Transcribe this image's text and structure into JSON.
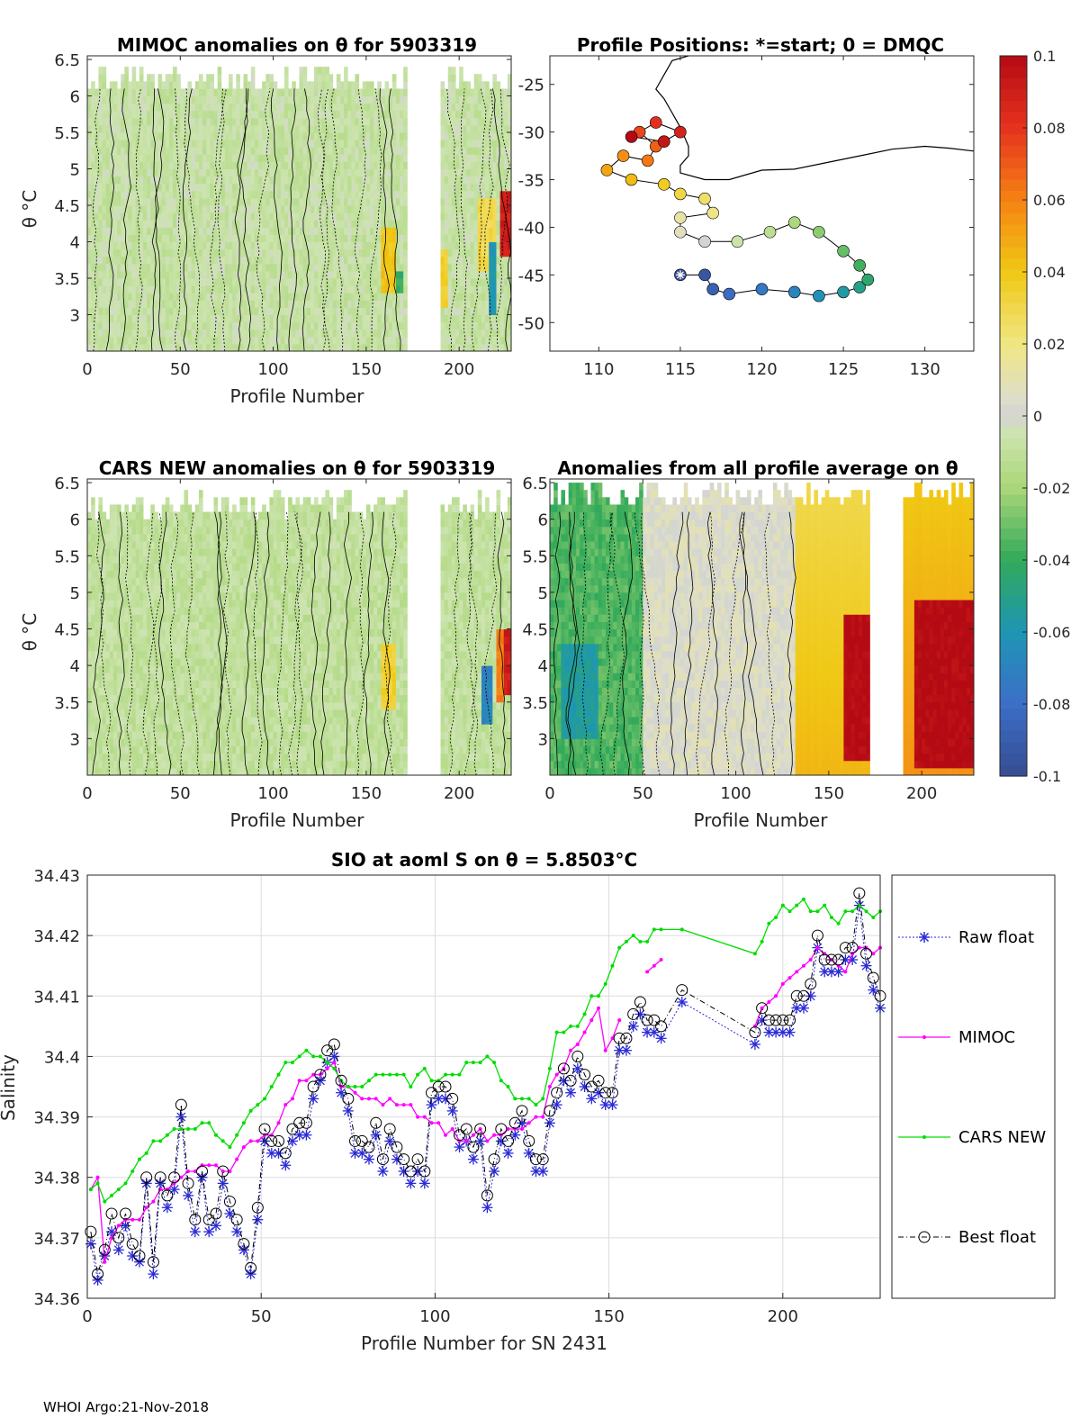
{
  "figure": {
    "footer": "WHOI Argo:21-Nov-2018"
  },
  "chart_data": [
    {
      "id": "mimoc",
      "type": "heatmap",
      "title": "MIMOC anomalies on θ  for 5903319",
      "xlabel": "Profile Number",
      "ylabel": "θ °C",
      "xlim": [
        0,
        228
      ],
      "ylim": [
        2.5,
        6.55
      ],
      "xticks": [
        0,
        50,
        100,
        150,
        200
      ],
      "yticks": [
        3,
        3.5,
        4,
        4.5,
        5,
        5.5,
        6,
        6.5
      ],
      "xtick_labels": [
        "0",
        "50",
        "100",
        "150",
        "200"
      ],
      "ytick_labels": [
        "3",
        "3.5",
        "4",
        "4.5",
        "5",
        "5.5",
        "6",
        "6.5"
      ],
      "gaps": [
        [
          172,
          190
        ]
      ],
      "top_range": [
        6.0,
        6.35
      ],
      "base_anomaly": -0.008,
      "hotspots": [
        {
          "x0": 157,
          "x1": 165,
          "y0": 3.3,
          "y1": 4.2,
          "v": 0.04
        },
        {
          "x0": 166,
          "x1": 170,
          "y0": 3.3,
          "y1": 3.6,
          "v": -0.04
        },
        {
          "x0": 190,
          "x1": 194,
          "y0": 3.1,
          "y1": 3.9,
          "v": 0.035
        },
        {
          "x0": 210,
          "x1": 220,
          "y0": 3.6,
          "y1": 4.5,
          "v": 0.03
        },
        {
          "x0": 216,
          "x1": 219,
          "y0": 3.0,
          "y1": 4.0,
          "v": -0.06
        },
        {
          "x0": 222,
          "x1": 227,
          "y0": 3.8,
          "y1": 4.6,
          "v": 0.09
        }
      ]
    },
    {
      "id": "positions",
      "type": "scatter",
      "title": "Profile Positions: *=start; 0 = DMQC",
      "xlim": [
        107,
        133
      ],
      "ylim": [
        -53,
        -22
      ],
      "xticks": [
        110,
        115,
        120,
        125,
        130
      ],
      "yticks": [
        -50,
        -45,
        -40,
        -35,
        -30,
        -25
      ],
      "xtick_labels": [
        "110",
        "115",
        "120",
        "125",
        "130"
      ],
      "ytick_labels": [
        "-50",
        "-45",
        "-40",
        "-35",
        "-30",
        "-25"
      ],
      "start": [
        115,
        -45
      ],
      "track": [
        [
          115.0,
          -45.0
        ],
        [
          116.5,
          -45.0
        ],
        [
          117.0,
          -46.5
        ],
        [
          118.0,
          -47.0
        ],
        [
          120.0,
          -46.5
        ],
        [
          122.0,
          -46.8
        ],
        [
          123.5,
          -47.2
        ],
        [
          125.0,
          -46.8
        ],
        [
          126.0,
          -46.3
        ],
        [
          126.5,
          -45.5
        ],
        [
          126.0,
          -44.0
        ],
        [
          125.0,
          -42.5
        ],
        [
          123.5,
          -40.5
        ],
        [
          122.0,
          -39.5
        ],
        [
          120.5,
          -40.5
        ],
        [
          118.5,
          -41.5
        ],
        [
          116.5,
          -41.5
        ],
        [
          115.0,
          -40.5
        ],
        [
          115.0,
          -39.0
        ],
        [
          117.0,
          -38.5
        ],
        [
          116.5,
          -37.0
        ],
        [
          115.0,
          -36.5
        ],
        [
          114.0,
          -35.5
        ],
        [
          112.0,
          -35.0
        ],
        [
          110.5,
          -34.0
        ],
        [
          111.5,
          -32.5
        ],
        [
          113.0,
          -33.0
        ],
        [
          113.5,
          -31.5
        ],
        [
          112.5,
          -30.0
        ],
        [
          113.5,
          -29.0
        ],
        [
          115.0,
          -30.0
        ],
        [
          114.0,
          -31.0
        ],
        [
          112.0,
          -30.5
        ]
      ],
      "coast": [
        [
          [
            115.5,
            -22.0
          ],
          [
            114.5,
            -22.5
          ],
          [
            114.0,
            -24.0
          ],
          [
            113.5,
            -25.5
          ],
          [
            114.0,
            -26.5
          ],
          [
            114.5,
            -28.0
          ],
          [
            115.0,
            -29.5
          ],
          [
            115.5,
            -31.5
          ],
          [
            115.5,
            -32.5
          ],
          [
            115.0,
            -33.5
          ],
          [
            115.0,
            -34.3
          ],
          [
            116.5,
            -35.0
          ],
          [
            118.0,
            -35.0
          ],
          [
            120.0,
            -34.0
          ],
          [
            122.0,
            -33.9
          ],
          [
            124.0,
            -33.2
          ],
          [
            126.0,
            -32.5
          ],
          [
            128.0,
            -31.8
          ],
          [
            130.0,
            -31.5
          ],
          [
            131.5,
            -31.7
          ],
          [
            133.0,
            -32.0
          ]
        ]
      ]
    },
    {
      "id": "cars",
      "type": "heatmap",
      "title": "CARS NEW anomalies on θ for 5903319",
      "xlabel": "Profile Number",
      "ylabel": "θ °C",
      "xlim": [
        0,
        228
      ],
      "ylim": [
        2.5,
        6.55
      ],
      "xticks": [
        0,
        50,
        100,
        150,
        200
      ],
      "yticks": [
        3,
        3.5,
        4,
        4.5,
        5,
        5.5,
        6,
        6.5
      ],
      "xtick_labels": [
        "0",
        "50",
        "100",
        "150",
        "200"
      ],
      "ytick_labels": [
        "3",
        "3.5",
        "4",
        "4.5",
        "5",
        "5.5",
        "6",
        "6.5"
      ],
      "gaps": [
        [
          172,
          190
        ]
      ],
      "top_range": [
        5.95,
        6.35
      ],
      "base_anomaly": -0.01,
      "hotspots": [
        {
          "x0": 158,
          "x1": 166,
          "y0": 3.4,
          "y1": 4.3,
          "v": 0.035
        },
        {
          "x0": 212,
          "x1": 218,
          "y0": 3.2,
          "y1": 4.0,
          "v": -0.07
        },
        {
          "x0": 219,
          "x1": 224,
          "y0": 3.5,
          "y1": 4.4,
          "v": 0.06
        },
        {
          "x0": 224,
          "x1": 228,
          "y0": 3.6,
          "y1": 4.4,
          "v": 0.09
        }
      ]
    },
    {
      "id": "average",
      "type": "heatmap",
      "title": "Anomalies from all profile average on θ",
      "xlabel": "Profile Number",
      "xlim": [
        0,
        228
      ],
      "ylim": [
        2.5,
        6.55
      ],
      "xticks": [
        0,
        50,
        100,
        150,
        200
      ],
      "yticks": [
        3,
        3.5,
        4,
        4.5,
        5,
        5.5,
        6,
        6.5
      ],
      "xtick_labels": [
        "0",
        "50",
        "100",
        "150",
        "200"
      ],
      "ytick_labels": [
        "3",
        "3.5",
        "4",
        "4.5",
        "5",
        "5.5",
        "6",
        "6.5"
      ],
      "gaps": [
        [
          172,
          190
        ]
      ],
      "top_range": [
        6.1,
        6.5
      ],
      "regions": [
        {
          "x0": 0,
          "x1": 50,
          "v": -0.035
        },
        {
          "x0": 50,
          "x1": 132,
          "v": 0.004
        },
        {
          "x0": 132,
          "x1": 172,
          "v": 0.03
        },
        {
          "x0": 190,
          "x1": 228,
          "v": 0.04
        }
      ],
      "hotspots": [
        {
          "x0": 157,
          "x1": 172,
          "y0": 2.7,
          "y1": 4.6,
          "v": 0.1
        },
        {
          "x0": 196,
          "x1": 228,
          "y0": 2.6,
          "y1": 4.8,
          "v": 0.1
        },
        {
          "x0": 5,
          "x1": 25,
          "y0": 3.0,
          "y1": 4.3,
          "v": -0.055
        }
      ]
    },
    {
      "id": "colorbar",
      "type": "heatmap",
      "range": [
        -0.1,
        0.1
      ],
      "tick_values": [
        0.1,
        0.08,
        0.06,
        0.04,
        0.02,
        0,
        -0.02,
        -0.04,
        -0.06,
        -0.08,
        -0.1
      ],
      "tick_labels": [
        "0.1",
        "0.08",
        "0.06",
        "0.04",
        "0.02",
        "0",
        "-0.02",
        "-0.04",
        "-0.06",
        "-0.08",
        "-0.1"
      ]
    },
    {
      "id": "salinity",
      "type": "line",
      "title": "SIO at aoml S on θ = 5.8503°C",
      "xlabel": "Profile Number for SN 2431",
      "ylabel": "Salinity",
      "xlim": [
        0,
        228
      ],
      "ylim": [
        34.36,
        34.43
      ],
      "xticks": [
        0,
        50,
        100,
        150,
        200
      ],
      "yticks": [
        34.36,
        34.37,
        34.38,
        34.39,
        34.4,
        34.41,
        34.42,
        34.43
      ],
      "xtick_labels": [
        "0",
        "50",
        "100",
        "150",
        "200"
      ],
      "ytick_labels": [
        "34.36",
        "34.37",
        "34.38",
        "34.39",
        "34.4",
        "34.41",
        "34.42",
        "34.43"
      ],
      "legend": [
        "Raw float",
        "MIMOC",
        "CARS NEW",
        "Best float"
      ],
      "x": [
        1,
        3,
        5,
        7,
        9,
        11,
        13,
        15,
        17,
        19,
        21,
        23,
        25,
        27,
        29,
        31,
        33,
        35,
        37,
        39,
        41,
        43,
        45,
        47,
        49,
        51,
        53,
        55,
        57,
        59,
        61,
        63,
        65,
        67,
        69,
        71,
        73,
        75,
        77,
        79,
        81,
        83,
        85,
        87,
        89,
        91,
        93,
        95,
        97,
        99,
        101,
        103,
        105,
        107,
        109,
        111,
        113,
        115,
        117,
        119,
        121,
        123,
        125,
        127,
        129,
        131,
        133,
        135,
        137,
        139,
        141,
        143,
        145,
        147,
        149,
        151,
        153,
        155,
        157,
        159,
        161,
        163,
        165,
        171,
        192,
        194,
        196,
        198,
        200,
        202,
        204,
        206,
        208,
        210,
        212,
        214,
        216,
        218,
        220,
        222,
        224,
        226,
        228
      ],
      "series": [
        {
          "name": "Raw float",
          "values": [
            34.369,
            34.363,
            34.367,
            34.371,
            34.368,
            34.372,
            34.367,
            34.366,
            34.379,
            34.364,
            34.379,
            34.375,
            34.378,
            34.39,
            34.377,
            34.371,
            34.38,
            34.371,
            34.372,
            34.379,
            34.374,
            34.371,
            34.368,
            34.364,
            34.373,
            34.386,
            34.384,
            34.384,
            34.382,
            34.386,
            34.387,
            34.387,
            34.393,
            34.396,
            34.399,
            34.4,
            34.394,
            34.391,
            34.384,
            34.384,
            34.383,
            34.387,
            34.381,
            34.386,
            34.383,
            34.381,
            34.379,
            34.381,
            34.379,
            34.392,
            34.393,
            34.393,
            34.391,
            34.385,
            34.386,
            34.383,
            34.386,
            34.375,
            34.381,
            34.386,
            34.384,
            34.387,
            34.389,
            34.384,
            34.381,
            34.381,
            34.389,
            34.392,
            34.396,
            34.394,
            34.398,
            34.395,
            34.393,
            34.394,
            34.392,
            34.392,
            34.401,
            34.401,
            34.405,
            34.407,
            34.404,
            34.404,
            34.403,
            34.409,
            34.402,
            34.406,
            34.404,
            34.404,
            34.404,
            34.404,
            34.408,
            34.408,
            34.41,
            34.418,
            34.414,
            34.414,
            34.414,
            34.416,
            34.416,
            34.425,
            34.415,
            34.411,
            34.408
          ]
        },
        {
          "name": "MIMOC",
          "values": [
            34.378,
            34.38,
            34.366,
            34.37,
            34.372,
            34.373,
            34.373,
            34.373,
            34.375,
            34.376,
            34.378,
            34.378,
            34.379,
            34.38,
            34.381,
            34.381,
            34.382,
            34.382,
            34.382,
            34.381,
            34.381,
            34.383,
            34.385,
            34.386,
            34.386,
            34.387,
            34.387,
            34.389,
            34.392,
            34.393,
            34.396,
            34.396,
            34.397,
            34.397,
            34.398,
            34.399,
            34.395,
            34.395,
            34.394,
            34.393,
            34.393,
            34.393,
            34.392,
            34.393,
            34.392,
            34.392,
            34.392,
            34.39,
            34.39,
            34.389,
            34.389,
            34.387,
            34.388,
            34.386,
            34.386,
            34.387,
            34.388,
            34.386,
            34.387,
            34.387,
            34.388,
            34.388,
            34.388,
            34.389,
            34.39,
            34.39,
            34.395,
            34.397,
            34.398,
            34.401,
            34.402,
            34.404,
            34.406,
            34.408,
            34.401,
            34.403,
            34.406,
            null,
            null,
            null,
            34.414,
            34.415,
            34.416,
            null,
            34.405,
            34.408,
            34.409,
            34.41,
            34.412,
            34.413,
            34.414,
            34.415,
            34.416,
            34.418,
            34.417,
            34.416,
            34.415,
            34.414,
            34.417,
            34.418,
            34.418,
            34.417,
            34.418
          ]
        },
        {
          "name": "CARS NEW",
          "values": [
            34.378,
            34.379,
            34.376,
            34.377,
            34.378,
            34.379,
            34.381,
            34.383,
            34.384,
            34.386,
            34.386,
            34.387,
            34.388,
            34.388,
            34.388,
            34.388,
            34.389,
            34.389,
            34.387,
            34.386,
            34.385,
            34.387,
            34.389,
            34.391,
            34.392,
            34.393,
            34.395,
            34.397,
            34.399,
            34.399,
            34.4,
            34.401,
            34.4,
            34.4,
            34.399,
            34.398,
            34.396,
            34.395,
            34.395,
            34.395,
            34.396,
            34.397,
            34.397,
            34.397,
            34.397,
            34.397,
            34.395,
            34.397,
            34.398,
            34.396,
            34.396,
            34.397,
            34.397,
            34.397,
            34.399,
            34.399,
            34.399,
            34.4,
            34.399,
            34.396,
            34.395,
            34.393,
            34.393,
            34.393,
            34.392,
            34.393,
            34.398,
            34.404,
            34.404,
            34.405,
            34.405,
            34.407,
            34.41,
            34.41,
            34.412,
            34.415,
            34.418,
            34.419,
            34.42,
            34.419,
            34.419,
            34.421,
            34.421,
            34.421,
            34.417,
            34.419,
            34.422,
            34.423,
            34.425,
            34.424,
            34.425,
            34.426,
            34.424,
            34.424,
            34.425,
            34.423,
            34.422,
            34.424,
            34.424,
            34.425,
            34.424,
            34.423,
            34.424
          ]
        },
        {
          "name": "Best float",
          "values": [
            34.371,
            34.364,
            34.368,
            34.374,
            34.37,
            34.374,
            34.369,
            34.367,
            34.38,
            34.366,
            34.38,
            34.377,
            34.38,
            34.392,
            34.379,
            34.373,
            34.381,
            34.373,
            34.374,
            34.381,
            34.376,
            34.373,
            34.369,
            34.365,
            34.375,
            34.388,
            34.386,
            34.386,
            34.384,
            34.388,
            34.389,
            34.389,
            34.395,
            34.397,
            34.401,
            34.402,
            34.396,
            34.393,
            34.386,
            34.386,
            34.385,
            34.389,
            34.383,
            34.388,
            34.385,
            34.383,
            34.381,
            34.383,
            34.381,
            34.394,
            34.395,
            34.395,
            34.393,
            34.387,
            34.388,
            34.385,
            34.388,
            34.377,
            34.383,
            34.388,
            34.386,
            34.389,
            34.391,
            34.386,
            34.383,
            34.383,
            34.391,
            34.394,
            34.398,
            34.396,
            34.4,
            34.397,
            34.395,
            34.396,
            34.394,
            34.394,
            34.403,
            34.403,
            34.407,
            34.409,
            34.406,
            34.406,
            34.405,
            34.411,
            34.404,
            34.408,
            34.406,
            34.406,
            34.406,
            34.406,
            34.41,
            34.41,
            34.412,
            34.42,
            34.416,
            34.416,
            34.416,
            34.418,
            34.418,
            34.427,
            34.417,
            34.413,
            34.41
          ]
        }
      ]
    }
  ]
}
